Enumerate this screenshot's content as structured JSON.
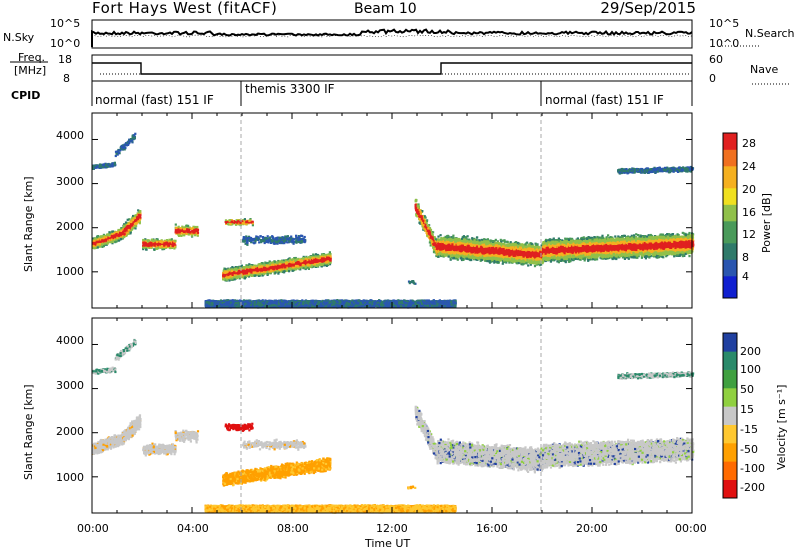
{
  "header": {
    "title": "Fort Hays West (fitACF)",
    "beam": "Beam 10",
    "date": "29/Sep/2015"
  },
  "noise_panel": {
    "left_label": "N.Sky",
    "right_label": "N.Search",
    "left_ticks": [
      "10^5",
      "10^0"
    ],
    "right_ticks": [
      "10^5",
      "10^0"
    ]
  },
  "freq_panel": {
    "left_label_line1": "Freq.",
    "left_label_line2": "[MHz]",
    "left_ticks": [
      "18",
      "8"
    ],
    "right_label": "Nave",
    "right_ticks": [
      "60",
      "0"
    ]
  },
  "cpid_panel": {
    "label": "CPID",
    "modes": [
      {
        "name": "normal (fast) 151 IF",
        "start_h": 0,
        "end_h": 6
      },
      {
        "name": "themis 3300 IF",
        "start_h": 6,
        "end_h": 18
      },
      {
        "name": "normal (fast) 151 IF",
        "start_h": 18,
        "end_h": 24
      }
    ]
  },
  "chart_data": [
    {
      "type": "heatmap",
      "title": "",
      "ylabel": "Slant Range [km]",
      "xlabel": "",
      "x_range_h": [
        0,
        24
      ],
      "ylim": [
        180,
        4600
      ],
      "yticks": [
        "1000",
        "2000",
        "3000",
        "4000"
      ],
      "colorbar": {
        "label": "Power [dB]",
        "ticks": [
          "28",
          "24",
          "20",
          "16",
          "12",
          "8",
          "4"
        ],
        "range": [
          0,
          30
        ]
      }
    },
    {
      "type": "heatmap",
      "title": "",
      "ylabel": "Slant Range [km]",
      "xlabel": "Time UT",
      "x_range_h": [
        0,
        24
      ],
      "ylim": [
        180,
        4600
      ],
      "yticks": [
        "1000",
        "2000",
        "3000",
        "4000"
      ],
      "xticks": [
        "00:00",
        "04:00",
        "08:00",
        "12:00",
        "16:00",
        "20:00",
        "00:00"
      ],
      "colorbar": {
        "label": "Velocity [m s⁻¹]",
        "ticks": [
          "200",
          "100",
          "50",
          "15",
          "-15",
          "-50",
          "-100",
          "-200"
        ]
      }
    }
  ],
  "colors": {
    "power_scale": [
      "#1020d0",
      "#2a56b0",
      "#2f7a6a",
      "#4a9a5a",
      "#90c04a",
      "#f0e020",
      "#f5b020",
      "#f07020",
      "#e02020"
    ],
    "velocity_scale": [
      "#e01010",
      "#ff6a00",
      "#ffa000",
      "#ffc830",
      "#c8c8c8",
      "#90d040",
      "#40a040",
      "#2a8a6a",
      "#2040a0"
    ]
  }
}
